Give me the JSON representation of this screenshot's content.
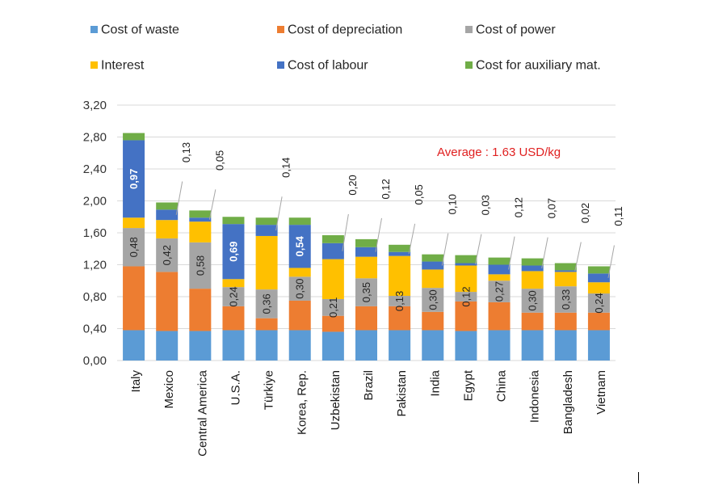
{
  "chart_data": {
    "type": "stacked-bar",
    "categories": [
      "Italy",
      "Mexico",
      "Central America",
      "U.S.A.",
      "Türkiye",
      "Korea, Rep.",
      "Uzbekistan",
      "Brazil",
      "Pakistan",
      "India",
      "Egypt",
      "China",
      "Indonesia",
      "Bangladesh",
      "Vietnam"
    ],
    "series": [
      {
        "name": "Cost of waste",
        "color": "#5b9bd5",
        "values": [
          0.38,
          0.37,
          0.37,
          0.38,
          0.38,
          0.38,
          0.36,
          0.38,
          0.38,
          0.38,
          0.37,
          0.38,
          0.38,
          0.38,
          0.38
        ]
      },
      {
        "name": "Cost of depreciation",
        "color": "#ed7d31",
        "values": [
          0.8,
          0.74,
          0.53,
          0.3,
          0.15,
          0.37,
          0.2,
          0.3,
          0.3,
          0.23,
          0.37,
          0.35,
          0.22,
          0.22,
          0.22
        ]
      },
      {
        "name": "Cost of power",
        "color": "#a5a5a5",
        "values": [
          0.48,
          0.42,
          0.58,
          0.24,
          0.36,
          0.3,
          0.21,
          0.35,
          0.13,
          0.3,
          0.12,
          0.27,
          0.3,
          0.33,
          0.24
        ]
      },
      {
        "name": "Interest",
        "color": "#ffc000",
        "values": [
          0.13,
          0.23,
          0.26,
          0.1,
          0.67,
          0.11,
          0.5,
          0.27,
          0.5,
          0.23,
          0.33,
          0.08,
          0.22,
          0.18,
          0.14
        ]
      },
      {
        "name": "Cost of labour",
        "color": "#4472c4",
        "values": [
          0.97,
          0.13,
          0.05,
          0.69,
          0.14,
          0.54,
          0.2,
          0.12,
          0.05,
          0.1,
          0.03,
          0.12,
          0.07,
          0.02,
          0.11
        ]
      },
      {
        "name": "Cost for auxiliary mat.",
        "color": "#70ad47",
        "values": [
          0.09,
          0.09,
          0.09,
          0.09,
          0.09,
          0.09,
          0.1,
          0.1,
          0.09,
          0.09,
          0.1,
          0.09,
          0.09,
          0.09,
          0.09
        ]
      }
    ],
    "data_labels": {
      "power": [
        "0,48",
        "0,42",
        "0,58",
        "0,24",
        "0,36",
        "0,30",
        "0,21",
        "0,35",
        "0,13",
        "0,30",
        "0,12",
        "0,27",
        "0,30",
        "0,33",
        "0,24"
      ],
      "labour_inside": {
        "0": "0,97",
        "3": "0,69",
        "5": "0,54"
      },
      "labour_callouts": {
        "1": "0,13",
        "2": "0,05",
        "4": "0,14",
        "6": "0,20",
        "7": "0,12",
        "8": "0,05",
        "9": "0,10",
        "10": "0,03",
        "11": "0,12",
        "12": "0,07",
        "13": "0,02",
        "14": "0,11"
      }
    },
    "yticks": [
      "0,00",
      "0,40",
      "0,80",
      "1,20",
      "1,60",
      "2,00",
      "2,40",
      "2,80",
      "3,20"
    ],
    "ylim": [
      0,
      3.2
    ],
    "ytick_step": 0.4,
    "annotation": {
      "text": "Average : 1.63 USD/kg",
      "color": "#e02020"
    },
    "legend_position": "top",
    "grid": true,
    "title": "",
    "xlabel": "",
    "ylabel": ""
  }
}
